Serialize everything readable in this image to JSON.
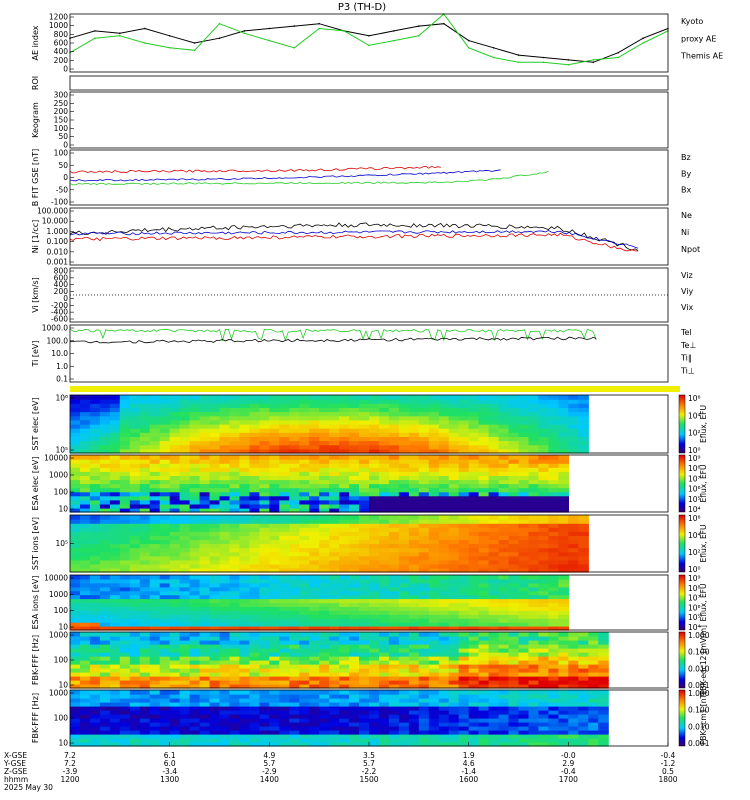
{
  "title": "P3 (TH-D)",
  "date_label": "2025 May 30",
  "time_axis": {
    "ticks": [
      "1200",
      "1300",
      "1400",
      "1500",
      "1600",
      "1700",
      "1800"
    ],
    "rows": [
      {
        "label": "X-GSE",
        "values": [
          "7.2",
          "6.1",
          "4.9",
          "3.5",
          "1.9",
          "-0.0",
          "-0.4"
        ]
      },
      {
        "label": "Y-GSE",
        "values": [
          "7.2",
          "6.0",
          "5.7",
          "5.7",
          "4.6",
          "2.9",
          "-1.2"
        ]
      },
      {
        "label": "Z-GSE",
        "values": [
          "-3.9",
          "-3.4",
          "-2.9",
          "-2.2",
          "-1.4",
          "-0.4",
          "0.5"
        ]
      },
      {
        "label": "hhmm",
        "values": [
          "1200",
          "1300",
          "1400",
          "1500",
          "1600",
          "1700",
          "1800"
        ]
      }
    ]
  },
  "colors": {
    "black": "#000000",
    "red": "#dd0000",
    "green": "#22cc22",
    "blue": "#0000cc"
  },
  "panels": [
    {
      "id": "ae",
      "ylabel": "AE index",
      "yticks": [
        "1200",
        "1000",
        "800",
        "600",
        "400",
        "200",
        "0"
      ],
      "legend": [
        {
          "text": "Kyoto",
          "color": "#22cc22"
        },
        {
          "text": "proxy AE",
          "color": "#22cc22"
        },
        {
          "text": "Themis AE",
          "color": "#000000"
        }
      ]
    },
    {
      "id": "roi",
      "ylabel": "ROI",
      "yticks": []
    },
    {
      "id": "keogram",
      "ylabel": "Keogram",
      "yticks": [
        "300",
        "250",
        "200",
        "150",
        "100",
        "50",
        "0"
      ]
    },
    {
      "id": "bfield",
      "ylabel": "B FIT GSE [nT]",
      "yticks": [
        "100",
        "50",
        "0",
        "-50",
        "-100"
      ],
      "legend": [
        {
          "text": "Bz",
          "color": "#dd0000"
        },
        {
          "text": "By",
          "color": "#22cc22"
        },
        {
          "text": "Bx",
          "color": "#0000cc"
        }
      ]
    },
    {
      "id": "ni",
      "ylabel": "Ni [1/cc]",
      "yticks": [
        "100.000",
        "10.000",
        "1.000",
        "0.100",
        "0.010",
        "0.001"
      ],
      "legend": [
        {
          "text": "Ne",
          "color": "#dd0000"
        },
        {
          "text": "Ni",
          "color": "#000000"
        },
        {
          "text": "Npot",
          "color": "#0000cc"
        }
      ]
    },
    {
      "id": "vi",
      "ylabel": "Vi [km/s]",
      "yticks": [
        "800",
        "600",
        "400",
        "200",
        "0",
        "-200",
        "-400",
        "-600"
      ],
      "legend": [
        {
          "text": "Viz",
          "color": "#dd0000"
        },
        {
          "text": "Viy",
          "color": "#22cc22"
        },
        {
          "text": "Vix",
          "color": "#0000cc"
        }
      ]
    },
    {
      "id": "ti",
      "ylabel": "Ti [eV]",
      "yticks": [
        "1000.0",
        "100.0",
        "10.0",
        "1.0",
        "0.1"
      ],
      "legend": [
        {
          "text": "Tel",
          "color": "#000000"
        },
        {
          "text": "Te⊥",
          "color": "#dd0000"
        },
        {
          "text": "Ti‖",
          "color": "#22cc22"
        },
        {
          "text": "Ti⊥",
          "color": "#0000cc"
        }
      ]
    },
    {
      "id": "sst_e",
      "ylabel": "SST elec [eV]",
      "yticks": [
        "10⁶",
        "10⁵"
      ],
      "cbar": "Eflux, EFU",
      "cticks": [
        "10⁶",
        "10⁴",
        "10²",
        "10⁰"
      ]
    },
    {
      "id": "esa_e",
      "ylabel": "ESA elec [eV]",
      "yticks": [
        "10000",
        "1000",
        "100",
        "10"
      ],
      "cbar": "Eflux, EFU",
      "cticks": [
        "10⁹",
        "10⁸",
        "10⁷",
        "10⁶",
        "10⁵",
        "10⁴"
      ]
    },
    {
      "id": "sst_i",
      "ylabel": "SST ions [eV]",
      "yticks": [
        "10⁵"
      ],
      "cbar": "Eflux, EFU",
      "cticks": [
        "10⁶",
        "10⁴",
        "10²",
        "10⁰"
      ]
    },
    {
      "id": "esa_i",
      "ylabel": "ESA ions [eV]",
      "yticks": [
        "10000",
        "1000",
        "100",
        "10"
      ],
      "cbar": "Eflux, EFU",
      "cticks": [
        "10⁹",
        "10⁸",
        "10⁷",
        "10⁶",
        "10⁵",
        "10⁴"
      ]
    },
    {
      "id": "fbk_e",
      "ylabel": "FBK-FFF [Hz]",
      "yticks": [
        "1000",
        "100",
        "10"
      ],
      "cbar": "FBK-edc12 [mV/m]",
      "cticks": [
        "1.000",
        "0.100",
        "0.010",
        "0.001"
      ]
    },
    {
      "id": "fbk_b",
      "ylabel": "FBK-FFF [Hz]",
      "yticks": [
        "1000",
        "100",
        "10"
      ],
      "cbar": "FBK-scm1 [nT]",
      "cticks": [
        "1.000",
        "0.100",
        "0.010",
        "0.001"
      ]
    }
  ],
  "chart_data": {
    "type": "line",
    "title": "P3 (TH-D)",
    "x": [
      "1200",
      "1215",
      "1230",
      "1245",
      "1300",
      "1315",
      "1330",
      "1345",
      "1400",
      "1415",
      "1430",
      "1445",
      "1500",
      "1515",
      "1530",
      "1545",
      "1600",
      "1615",
      "1630",
      "1645",
      "1700",
      "1715",
      "1730",
      "1745",
      "1800"
    ],
    "series": [
      {
        "name": "Themis AE",
        "values": [
          700,
          850,
          800,
          900,
          750,
          600,
          700,
          850,
          900,
          950,
          1000,
          850,
          750,
          850,
          950,
          1000,
          650,
          500,
          350,
          300,
          250,
          200,
          400,
          700,
          900
        ]
      },
      {
        "name": "Kyoto proxy AE",
        "values": [
          400,
          700,
          750,
          600,
          500,
          450,
          1000,
          800,
          650,
          500,
          900,
          850,
          550,
          650,
          750,
          1200,
          500,
          300,
          200,
          200,
          150,
          250,
          300,
          600,
          850
        ]
      }
    ],
    "xlabel": "hhmm",
    "ylabel": "AE index",
    "ylim": [
      0,
      1200
    ],
    "grid": false,
    "legend": "right"
  }
}
